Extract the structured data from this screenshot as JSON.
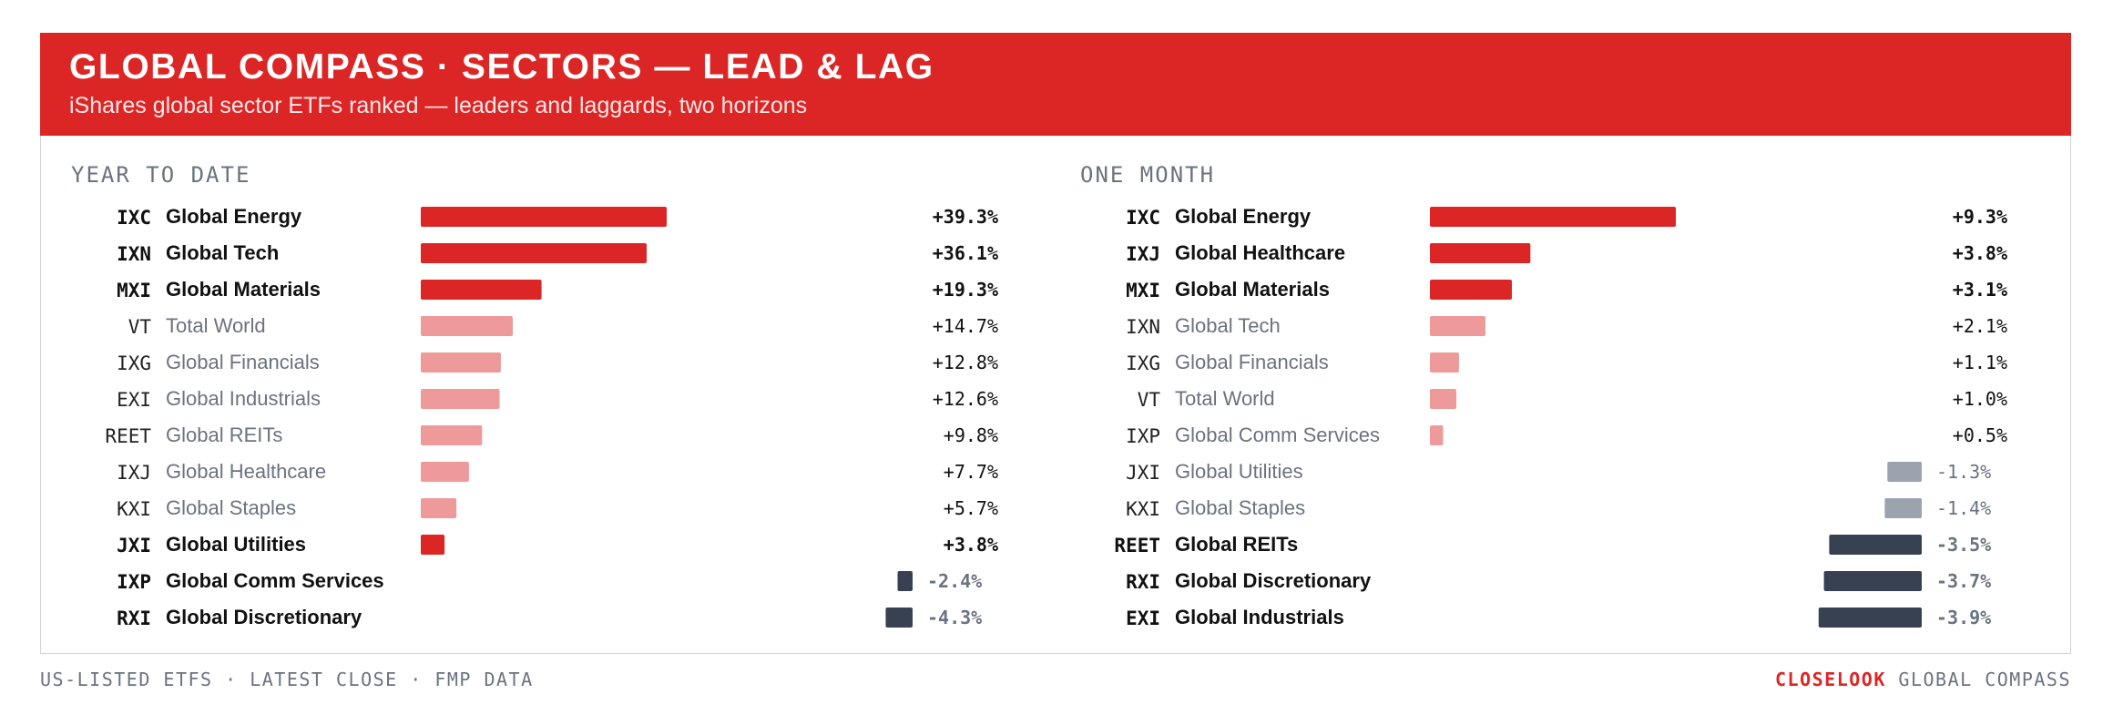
{
  "header": {
    "title": "GLOBAL COMPASS · SECTORS — LEAD & LAG",
    "subtitle": "iShares global sector ETFs ranked — leaders and laggards, two horizons"
  },
  "footer": {
    "left": "US-LISTED ETFS · LATEST CLOSE · FMP DATA",
    "brand": "CLOSELOOK",
    "right": "GLOBAL COMPASS"
  },
  "colors": {
    "accent": "#dc2626",
    "positive_muted": "#ef9a9a",
    "negative_strong": "#374151",
    "negative_muted": "#9ca3af",
    "label_muted": "#6b7280",
    "label_strong": "#111111"
  },
  "chart_data": [
    {
      "type": "bar",
      "title": "YEAR TO DATE",
      "unit": "%",
      "rows": [
        {
          "ticker": "IXC",
          "name": "Global Energy",
          "value": 39.3,
          "label": "+39.3%",
          "highlight": true
        },
        {
          "ticker": "IXN",
          "name": "Global Tech",
          "value": 36.1,
          "label": "+36.1%",
          "highlight": true
        },
        {
          "ticker": "MXI",
          "name": "Global Materials",
          "value": 19.3,
          "label": "+19.3%",
          "highlight": true
        },
        {
          "ticker": "VT",
          "name": "Total World",
          "value": 14.7,
          "label": "+14.7%",
          "highlight": false
        },
        {
          "ticker": "IXG",
          "name": "Global Financials",
          "value": 12.8,
          "label": "+12.8%",
          "highlight": false
        },
        {
          "ticker": "EXI",
          "name": "Global Industrials",
          "value": 12.6,
          "label": "+12.6%",
          "highlight": false
        },
        {
          "ticker": "REET",
          "name": "Global REITs",
          "value": 9.8,
          "label": "+9.8%",
          "highlight": false
        },
        {
          "ticker": "IXJ",
          "name": "Global Healthcare",
          "value": 7.7,
          "label": "+7.7%",
          "highlight": false
        },
        {
          "ticker": "KXI",
          "name": "Global Staples",
          "value": 5.7,
          "label": "+5.7%",
          "highlight": false
        },
        {
          "ticker": "JXI",
          "name": "Global Utilities",
          "value": 3.8,
          "label": "+3.8%",
          "highlight": true
        },
        {
          "ticker": "IXP",
          "name": "Global Comm Services",
          "value": -2.4,
          "label": "-2.4%",
          "highlight": true
        },
        {
          "ticker": "RXI",
          "name": "Global Discretionary",
          "value": -4.3,
          "label": "-4.3%",
          "highlight": true
        }
      ]
    },
    {
      "type": "bar",
      "title": "ONE MONTH",
      "unit": "%",
      "rows": [
        {
          "ticker": "IXC",
          "name": "Global Energy",
          "value": 9.3,
          "label": "+9.3%",
          "highlight": true
        },
        {
          "ticker": "IXJ",
          "name": "Global Healthcare",
          "value": 3.8,
          "label": "+3.8%",
          "highlight": true
        },
        {
          "ticker": "MXI",
          "name": "Global Materials",
          "value": 3.1,
          "label": "+3.1%",
          "highlight": true
        },
        {
          "ticker": "IXN",
          "name": "Global Tech",
          "value": 2.1,
          "label": "+2.1%",
          "highlight": false
        },
        {
          "ticker": "IXG",
          "name": "Global Financials",
          "value": 1.1,
          "label": "+1.1%",
          "highlight": false
        },
        {
          "ticker": "VT",
          "name": "Total World",
          "value": 1.0,
          "label": "+1.0%",
          "highlight": false
        },
        {
          "ticker": "IXP",
          "name": "Global Comm Services",
          "value": 0.5,
          "label": "+0.5%",
          "highlight": false
        },
        {
          "ticker": "JXI",
          "name": "Global Utilities",
          "value": -1.3,
          "label": "-1.3%",
          "highlight": false
        },
        {
          "ticker": "KXI",
          "name": "Global Staples",
          "value": -1.4,
          "label": "-1.4%",
          "highlight": false
        },
        {
          "ticker": "REET",
          "name": "Global REITs",
          "value": -3.5,
          "label": "-3.5%",
          "highlight": true
        },
        {
          "ticker": "RXI",
          "name": "Global Discretionary",
          "value": -3.7,
          "label": "-3.7%",
          "highlight": true
        },
        {
          "ticker": "EXI",
          "name": "Global Industrials",
          "value": -3.9,
          "label": "-3.9%",
          "highlight": true
        }
      ]
    }
  ]
}
